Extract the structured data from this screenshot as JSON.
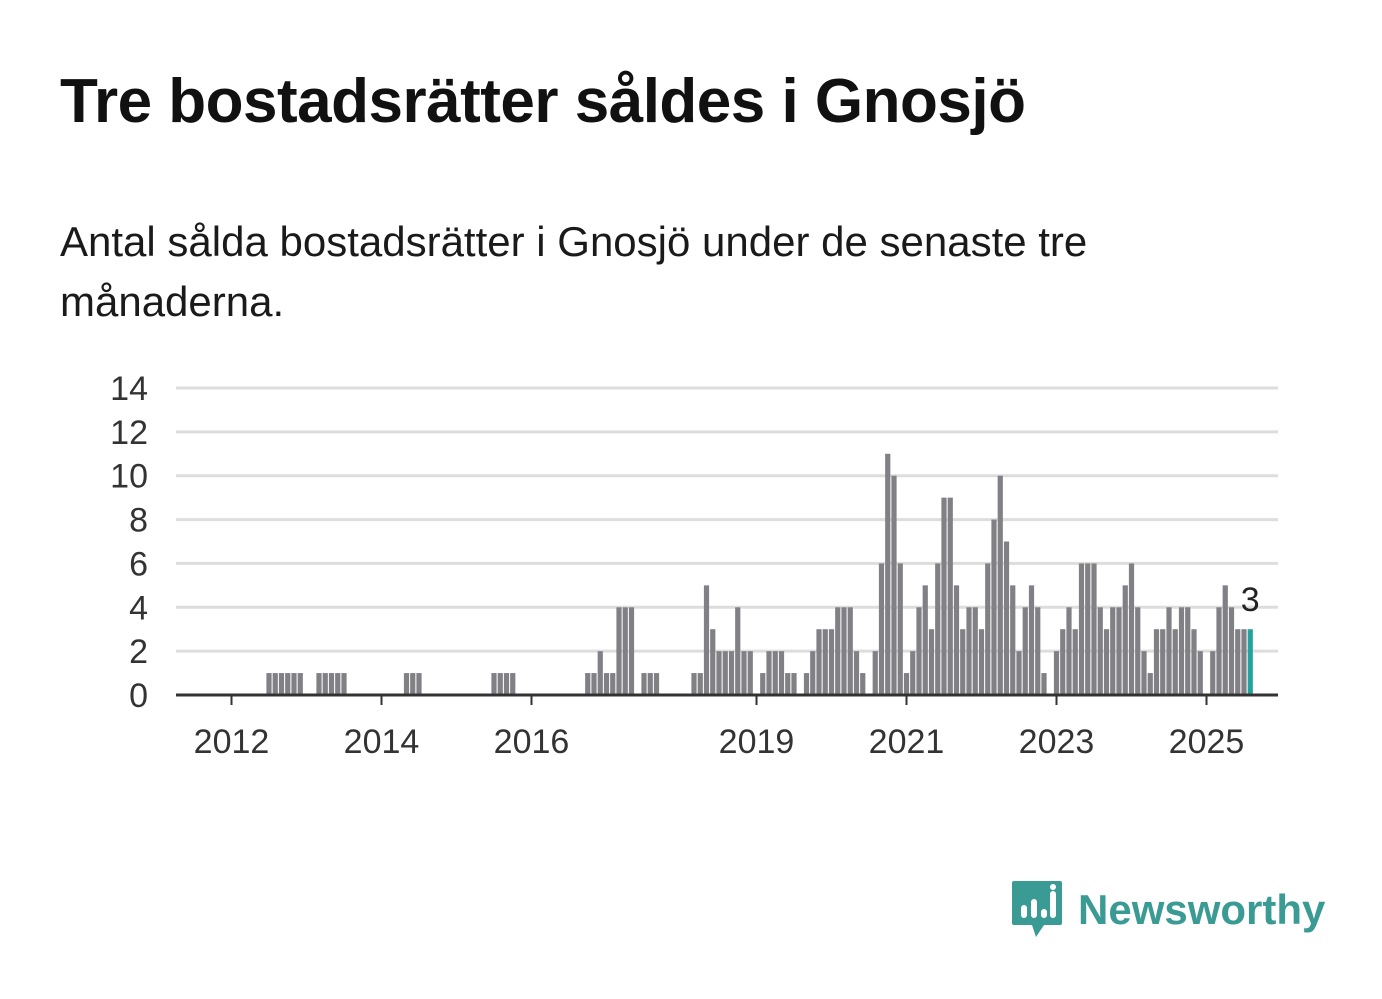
{
  "title": "Tre bostadsrätter såldes i Gnosjö",
  "subtitle": "Antal sålda bostadsrätter i Gnosjö under de senaste tre månaderna.",
  "colors": {
    "bar": "#808085",
    "highlight": "#24a29d",
    "grid": "#dddddd",
    "axis": "#333333",
    "brand": "#3a9a94"
  },
  "brand": {
    "name": "Newsworthy",
    "icon": "newsworthy-logo-icon"
  },
  "chart_data": {
    "type": "bar",
    "title": "",
    "xlabel": "",
    "ylabel": "",
    "ylim": [
      0,
      14
    ],
    "yticks": [
      0,
      2,
      4,
      6,
      8,
      10,
      12,
      14
    ],
    "grid": true,
    "legend": "none",
    "xtick_labels": [
      {
        "label": "2012",
        "x": "2012-01"
      },
      {
        "label": "2014",
        "x": "2014-01"
      },
      {
        "label": "2016",
        "x": "2016-01"
      },
      {
        "label": "2019",
        "x": "2019-01"
      },
      {
        "label": "2021",
        "x": "2021-01"
      },
      {
        "label": "2023",
        "x": "2023-01"
      },
      {
        "label": "2025",
        "x": "2025-01"
      }
    ],
    "highlight_label": "3",
    "data": [
      {
        "x": "2012-07",
        "y": 1
      },
      {
        "x": "2012-08",
        "y": 1
      },
      {
        "x": "2012-09",
        "y": 1
      },
      {
        "x": "2012-10",
        "y": 1
      },
      {
        "x": "2012-11",
        "y": 1
      },
      {
        "x": "2012-12",
        "y": 1
      },
      {
        "x": "2013-03",
        "y": 1
      },
      {
        "x": "2013-04",
        "y": 1
      },
      {
        "x": "2013-05",
        "y": 1
      },
      {
        "x": "2013-06",
        "y": 1
      },
      {
        "x": "2013-07",
        "y": 1
      },
      {
        "x": "2014-05",
        "y": 1
      },
      {
        "x": "2014-06",
        "y": 1
      },
      {
        "x": "2014-07",
        "y": 1
      },
      {
        "x": "2015-07",
        "y": 1
      },
      {
        "x": "2015-08",
        "y": 1
      },
      {
        "x": "2015-09",
        "y": 1
      },
      {
        "x": "2015-10",
        "y": 1
      },
      {
        "x": "2016-10",
        "y": 1
      },
      {
        "x": "2016-11",
        "y": 1
      },
      {
        "x": "2016-12",
        "y": 2
      },
      {
        "x": "2017-01",
        "y": 1
      },
      {
        "x": "2017-02",
        "y": 1
      },
      {
        "x": "2017-03",
        "y": 4
      },
      {
        "x": "2017-04",
        "y": 4
      },
      {
        "x": "2017-05",
        "y": 4
      },
      {
        "x": "2017-07",
        "y": 1
      },
      {
        "x": "2017-08",
        "y": 1
      },
      {
        "x": "2017-09",
        "y": 1
      },
      {
        "x": "2018-03",
        "y": 1
      },
      {
        "x": "2018-04",
        "y": 1
      },
      {
        "x": "2018-05",
        "y": 5
      },
      {
        "x": "2018-06",
        "y": 3
      },
      {
        "x": "2018-07",
        "y": 2
      },
      {
        "x": "2018-08",
        "y": 2
      },
      {
        "x": "2018-09",
        "y": 2
      },
      {
        "x": "2018-10",
        "y": 4
      },
      {
        "x": "2018-11",
        "y": 2
      },
      {
        "x": "2018-12",
        "y": 2
      },
      {
        "x": "2019-02",
        "y": 1
      },
      {
        "x": "2019-03",
        "y": 2
      },
      {
        "x": "2019-04",
        "y": 2
      },
      {
        "x": "2019-05",
        "y": 2
      },
      {
        "x": "2019-06",
        "y": 1
      },
      {
        "x": "2019-07",
        "y": 1
      },
      {
        "x": "2019-09",
        "y": 1
      },
      {
        "x": "2019-10",
        "y": 2
      },
      {
        "x": "2019-11",
        "y": 3
      },
      {
        "x": "2019-12",
        "y": 3
      },
      {
        "x": "2020-01",
        "y": 3
      },
      {
        "x": "2020-02",
        "y": 4
      },
      {
        "x": "2020-03",
        "y": 4
      },
      {
        "x": "2020-04",
        "y": 4
      },
      {
        "x": "2020-05",
        "y": 2
      },
      {
        "x": "2020-06",
        "y": 1
      },
      {
        "x": "2020-08",
        "y": 2
      },
      {
        "x": "2020-09",
        "y": 6
      },
      {
        "x": "2020-10",
        "y": 11
      },
      {
        "x": "2020-11",
        "y": 10
      },
      {
        "x": "2020-12",
        "y": 6
      },
      {
        "x": "2021-01",
        "y": 1
      },
      {
        "x": "2021-02",
        "y": 2
      },
      {
        "x": "2021-03",
        "y": 4
      },
      {
        "x": "2021-04",
        "y": 5
      },
      {
        "x": "2021-05",
        "y": 3
      },
      {
        "x": "2021-06",
        "y": 6
      },
      {
        "x": "2021-07",
        "y": 9
      },
      {
        "x": "2021-08",
        "y": 9
      },
      {
        "x": "2021-09",
        "y": 5
      },
      {
        "x": "2021-10",
        "y": 3
      },
      {
        "x": "2021-11",
        "y": 4
      },
      {
        "x": "2021-12",
        "y": 4
      },
      {
        "x": "2022-01",
        "y": 3
      },
      {
        "x": "2022-02",
        "y": 6
      },
      {
        "x": "2022-03",
        "y": 8
      },
      {
        "x": "2022-04",
        "y": 10
      },
      {
        "x": "2022-05",
        "y": 7
      },
      {
        "x": "2022-06",
        "y": 5
      },
      {
        "x": "2022-07",
        "y": 2
      },
      {
        "x": "2022-08",
        "y": 4
      },
      {
        "x": "2022-09",
        "y": 5
      },
      {
        "x": "2022-10",
        "y": 4
      },
      {
        "x": "2022-11",
        "y": 1
      },
      {
        "x": "2023-01",
        "y": 2
      },
      {
        "x": "2023-02",
        "y": 3
      },
      {
        "x": "2023-03",
        "y": 4
      },
      {
        "x": "2023-04",
        "y": 3
      },
      {
        "x": "2023-05",
        "y": 6
      },
      {
        "x": "2023-06",
        "y": 6
      },
      {
        "x": "2023-07",
        "y": 6
      },
      {
        "x": "2023-08",
        "y": 4
      },
      {
        "x": "2023-09",
        "y": 3
      },
      {
        "x": "2023-10",
        "y": 4
      },
      {
        "x": "2023-11",
        "y": 4
      },
      {
        "x": "2023-12",
        "y": 5
      },
      {
        "x": "2024-01",
        "y": 6
      },
      {
        "x": "2024-02",
        "y": 4
      },
      {
        "x": "2024-03",
        "y": 2
      },
      {
        "x": "2024-04",
        "y": 1
      },
      {
        "x": "2024-05",
        "y": 3
      },
      {
        "x": "2024-06",
        "y": 3
      },
      {
        "x": "2024-07",
        "y": 4
      },
      {
        "x": "2024-08",
        "y": 3
      },
      {
        "x": "2024-09",
        "y": 4
      },
      {
        "x": "2024-10",
        "y": 4
      },
      {
        "x": "2024-11",
        "y": 3
      },
      {
        "x": "2024-12",
        "y": 2
      },
      {
        "x": "2025-02",
        "y": 2
      },
      {
        "x": "2025-03",
        "y": 4
      },
      {
        "x": "2025-04",
        "y": 5
      },
      {
        "x": "2025-05",
        "y": 4
      },
      {
        "x": "2025-06",
        "y": 3
      },
      {
        "x": "2025-07",
        "y": 3
      },
      {
        "x": "2025-08",
        "y": 3,
        "highlight": true
      }
    ]
  }
}
